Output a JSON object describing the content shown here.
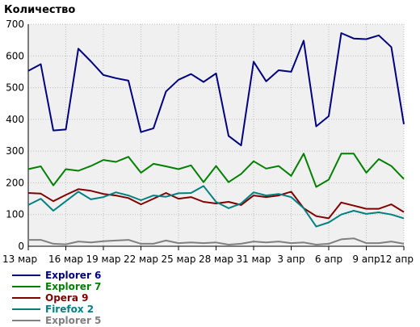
{
  "chart_data": {
    "type": "line",
    "title": "Количество",
    "xlabel": "",
    "ylabel": "",
    "ylim": [
      0,
      700
    ],
    "yticks": [
      "0",
      "100",
      "200",
      "300",
      "400",
      "500",
      "600",
      "700"
    ],
    "xticks": [
      "13 мар",
      "16 мар",
      "19 мар",
      "22 мар",
      "25 мар",
      "28 мар",
      "31 мар",
      "3 апр",
      "6 апр",
      "9 апр",
      "12 апр"
    ],
    "grid": true,
    "legend_placement": "bottom",
    "x": [
      "13 мар",
      "14 мар",
      "15 мар",
      "16 мар",
      "17 мар",
      "18 мар",
      "19 мар",
      "20 мар",
      "21 мар",
      "22 мар",
      "23 мар",
      "24 мар",
      "25 мар",
      "26 мар",
      "27 мар",
      "28 мар",
      "29 мар",
      "30 мар",
      "31 мар",
      "1 апр",
      "2 апр",
      "3 апр",
      "4 апр",
      "5 апр",
      "6 апр",
      "7 апр",
      "8 апр",
      "9 апр",
      "10 апр",
      "11 апр",
      "12 апр"
    ],
    "series": [
      {
        "name": "Explorer 6",
        "color": "#000080",
        "values": [
          553,
          574,
          365,
          368,
          623,
          583,
          540,
          530,
          522,
          360,
          372,
          488,
          525,
          543,
          518,
          545,
          348,
          318,
          582,
          520,
          555,
          550,
          648,
          378,
          410,
          672,
          655,
          653,
          665,
          628,
          385
        ]
      },
      {
        "name": "Explorer 7",
        "color": "#008000",
        "values": [
          243,
          252,
          192,
          243,
          238,
          253,
          272,
          266,
          282,
          232,
          260,
          252,
          243,
          255,
          202,
          253,
          202,
          228,
          268,
          245,
          253,
          222,
          292,
          187,
          210,
          292,
          292,
          232,
          275,
          253,
          212
        ]
      },
      {
        "name": "Opera 9",
        "color": "#800000",
        "values": [
          168,
          166,
          142,
          162,
          180,
          175,
          165,
          160,
          152,
          132,
          150,
          168,
          150,
          155,
          140,
          135,
          140,
          130,
          160,
          155,
          160,
          172,
          120,
          95,
          88,
          138,
          128,
          118,
          118,
          132,
          108
        ]
      },
      {
        "name": "Firefox 2",
        "color": "#008080",
        "values": [
          130,
          150,
          112,
          142,
          172,
          148,
          155,
          170,
          160,
          145,
          160,
          156,
          167,
          168,
          190,
          140,
          120,
          135,
          170,
          160,
          165,
          155,
          120,
          62,
          75,
          100,
          112,
          102,
          107,
          100,
          88
        ]
      },
      {
        "name": "Explorer 5",
        "color": "#808080",
        "values": [
          20,
          20,
          8,
          6,
          15,
          12,
          16,
          18,
          20,
          8,
          8,
          18,
          10,
          12,
          10,
          12,
          5,
          8,
          15,
          12,
          15,
          10,
          12,
          5,
          8,
          22,
          25,
          10,
          10,
          15,
          8
        ]
      }
    ]
  }
}
